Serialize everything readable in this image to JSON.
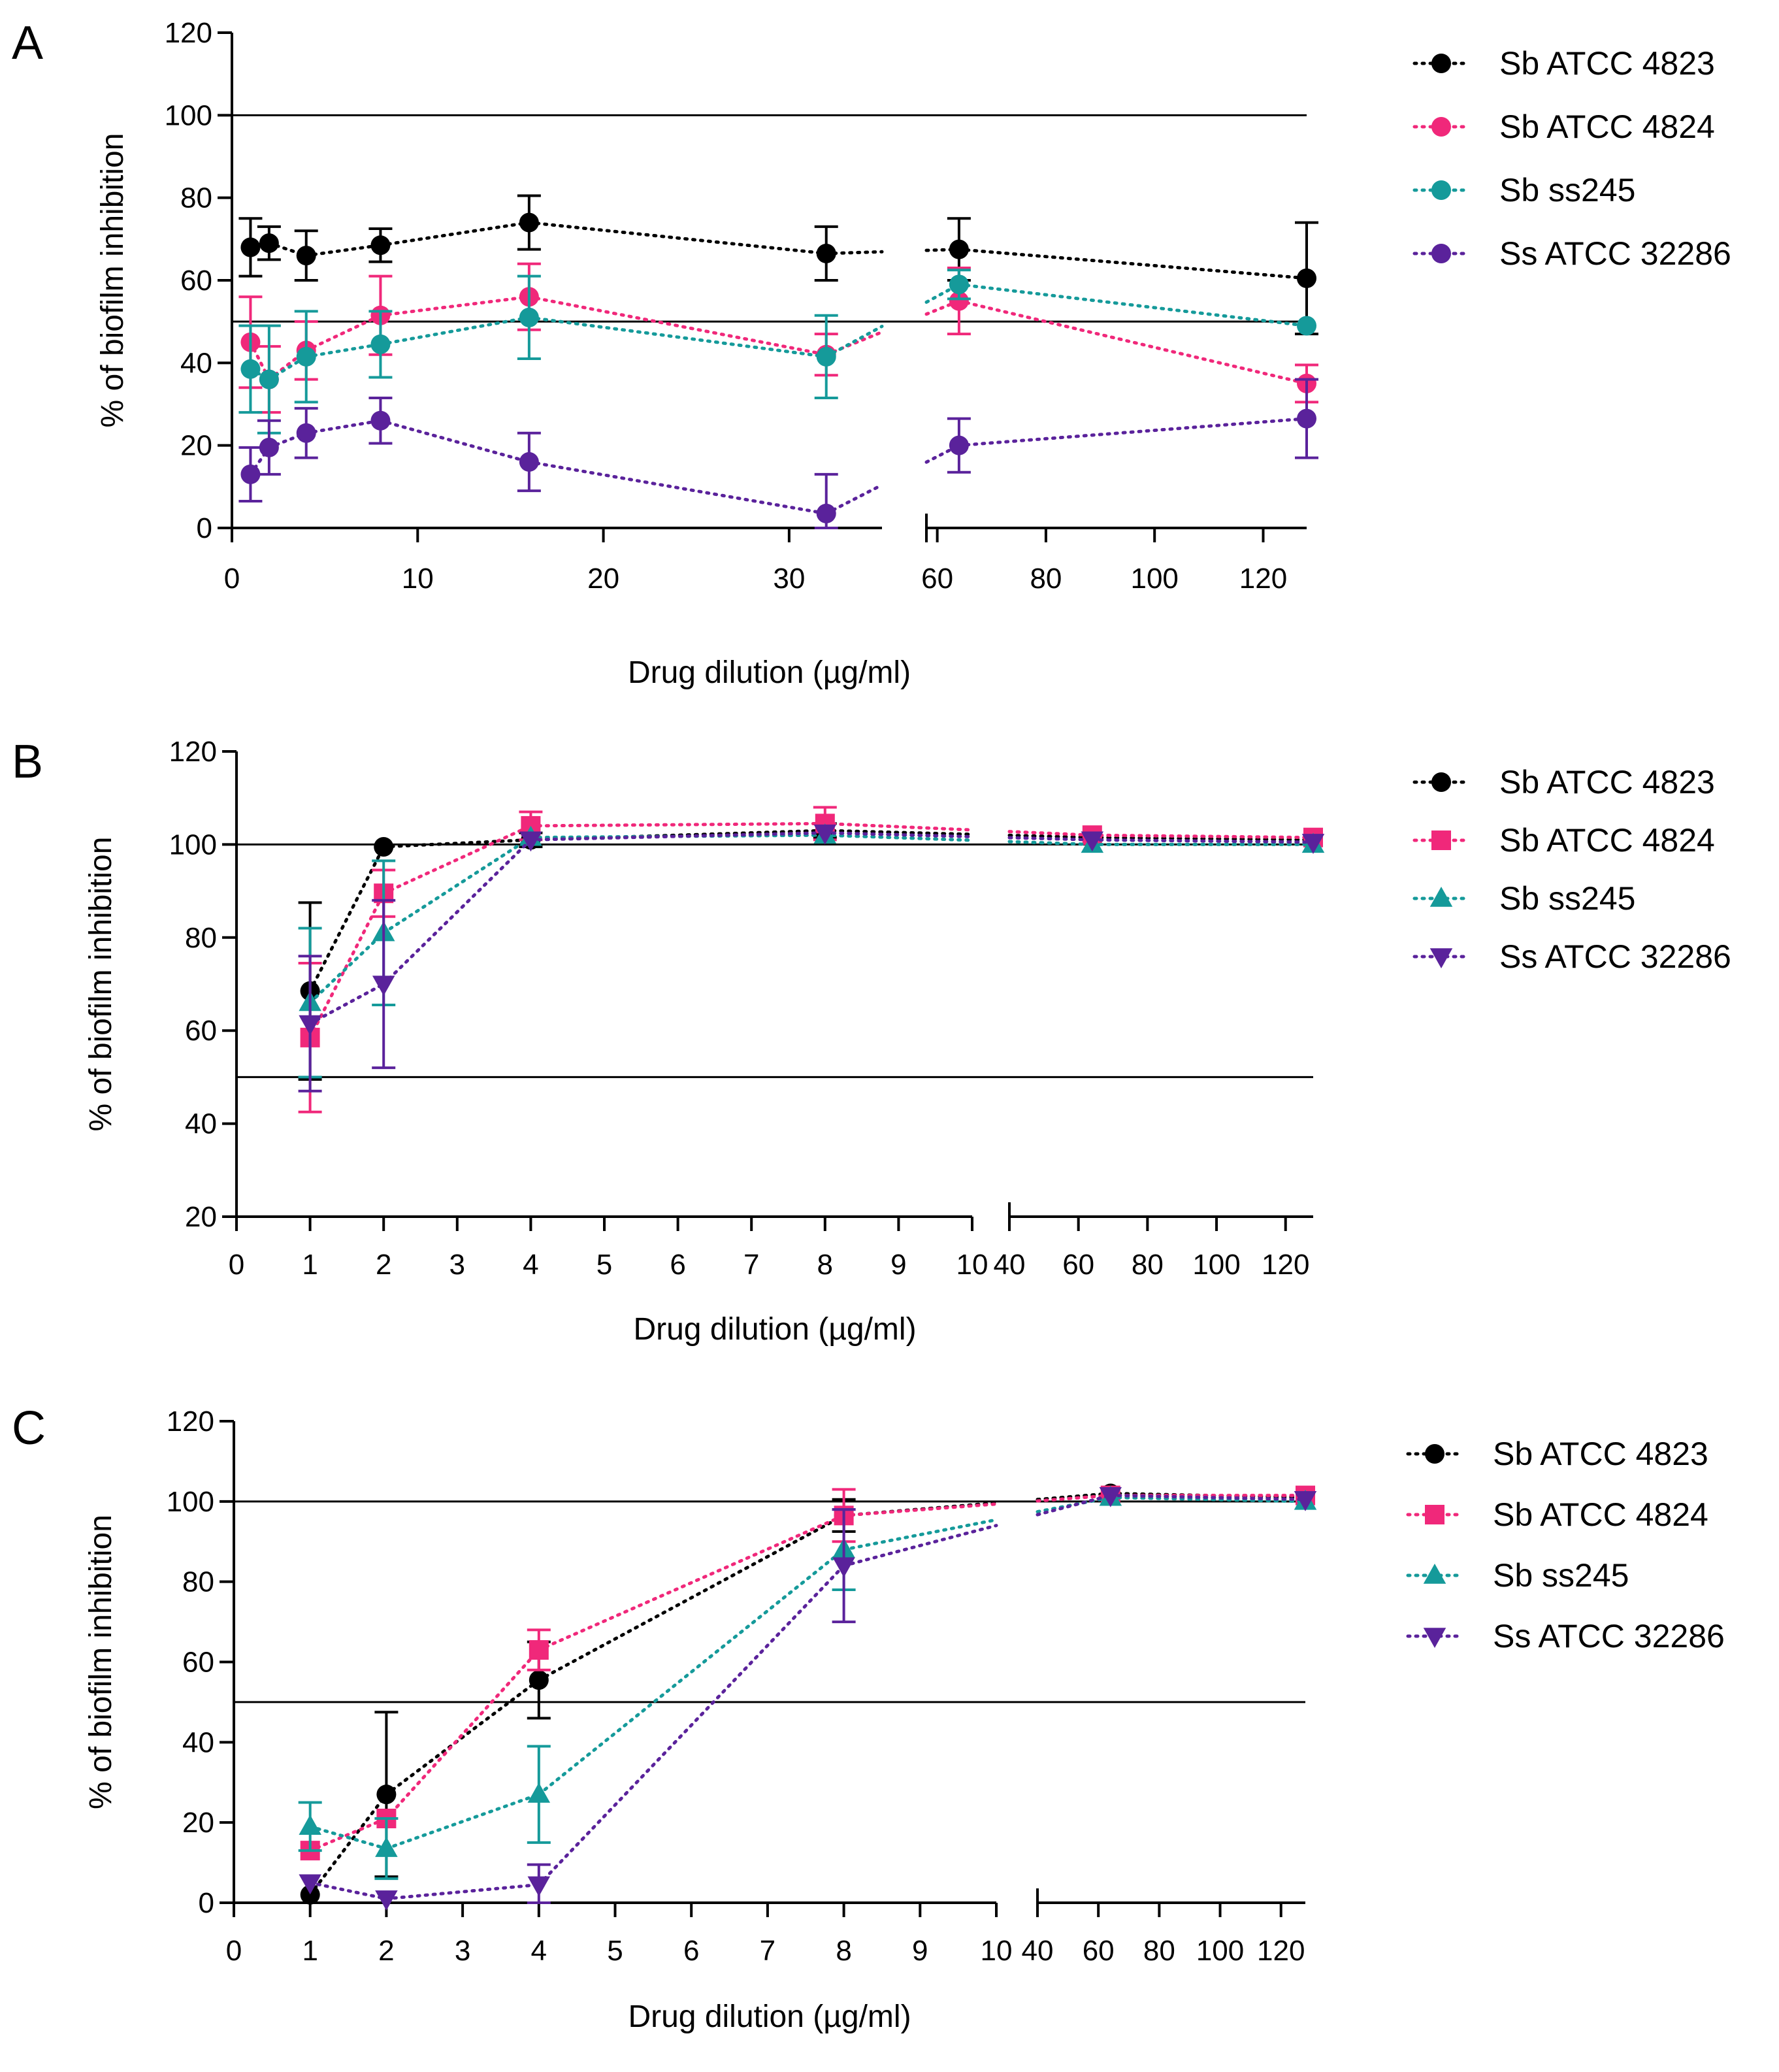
{
  "chart_data": [
    {
      "panel": "A",
      "type": "scatter",
      "xlabel": "Drug dilution (µg/ml)",
      "ylabel": "% of biofilm inhibition",
      "ylim": [
        0,
        120
      ],
      "yticks": [
        "0",
        "20",
        "40",
        "60",
        "80",
        "100",
        "120"
      ],
      "reference_lines": [
        50,
        100
      ],
      "x_segments": [
        {
          "range": [
            0,
            35
          ],
          "ticks": [
            0,
            10,
            20,
            30
          ],
          "tick_labels": [
            "0",
            "10",
            "20",
            "30"
          ]
        },
        {
          "range": [
            58,
            128
          ],
          "ticks": [
            60,
            80,
            100,
            120
          ],
          "tick_labels": [
            "60",
            "80",
            "100",
            "120"
          ]
        }
      ],
      "series": [
        {
          "name": "Sb ATCC 4823",
          "color": "#000000",
          "marker": "circle",
          "x": [
            1,
            2,
            4,
            8,
            16,
            32,
            64,
            128
          ],
          "values": [
            68,
            69,
            66,
            68.5,
            74,
            66.5,
            67.5,
            60.5
          ],
          "errors": [
            7,
            4,
            6,
            4,
            6.5,
            6.5,
            7.5,
            13.5
          ]
        },
        {
          "name": "Sb ATCC 4824",
          "color": "#f0287a",
          "marker": "circle",
          "x": [
            1,
            2,
            4,
            8,
            16,
            32,
            64,
            128
          ],
          "values": [
            45,
            36,
            43,
            51.5,
            56,
            42,
            55,
            35
          ],
          "errors": [
            11,
            8,
            7,
            9.5,
            8,
            5,
            8,
            4.5
          ]
        },
        {
          "name": "Sb ss245",
          "color": "#159a9a",
          "marker": "circle",
          "x": [
            1,
            2,
            4,
            8,
            16,
            32,
            64,
            128
          ],
          "values": [
            38.5,
            36,
            41.5,
            44.5,
            51,
            41.5,
            59,
            49
          ],
          "errors": [
            10.5,
            13,
            11,
            8,
            10,
            10,
            3.5,
            0
          ]
        },
        {
          "name": "Ss ATCC 32286",
          "color": "#5a229b",
          "marker": "circle",
          "x": [
            1,
            2,
            4,
            8,
            16,
            32,
            64,
            128
          ],
          "values": [
            13,
            19.5,
            23,
            26,
            16,
            3.5,
            20,
            26.5
          ],
          "errors": [
            6.5,
            6.5,
            6,
            5.5,
            7,
            9.5,
            6.5,
            9.5
          ]
        }
      ]
    },
    {
      "panel": "B",
      "type": "scatter",
      "xlabel": "Drug dilution (µg/ml)",
      "ylabel": "% of biofilm inhibition",
      "ylim": [
        20,
        120
      ],
      "yticks": [
        "20",
        "40",
        "60",
        "80",
        "100",
        "120"
      ],
      "reference_lines": [
        50,
        100
      ],
      "x_segments": [
        {
          "range": [
            0,
            10
          ],
          "ticks": [
            0,
            1,
            2,
            3,
            4,
            5,
            6,
            7,
            8,
            9,
            10
          ],
          "tick_labels": [
            "0",
            "1",
            "2",
            "3",
            "4",
            "5",
            "6",
            "7",
            "8",
            "9",
            "10"
          ]
        },
        {
          "range": [
            40,
            128
          ],
          "ticks": [
            40,
            60,
            80,
            100,
            120
          ],
          "tick_labels": [
            "40",
            "60",
            "80",
            "100",
            "120"
          ]
        }
      ],
      "series": [
        {
          "name": "Sb ATCC 4823",
          "color": "#000000",
          "marker": "circle",
          "x": [
            1,
            2,
            4,
            8,
            64,
            128
          ],
          "values": [
            68.5,
            99.5,
            101,
            103,
            101.5,
            101
          ],
          "errors": [
            19,
            0,
            1.5,
            1.5,
            0,
            0
          ]
        },
        {
          "name": "Sb ATCC 4824",
          "color": "#f0287a",
          "marker": "square",
          "x": [
            1,
            2,
            4,
            8,
            64,
            128
          ],
          "values": [
            58.5,
            89.5,
            104,
            104.5,
            102,
            101.5
          ],
          "errors": [
            16,
            5,
            3,
            3.5,
            0,
            0
          ]
        },
        {
          "name": "Sb ss245",
          "color": "#159a9a",
          "marker": "triangle-up",
          "x": [
            1,
            2,
            4,
            8,
            64,
            128
          ],
          "values": [
            66,
            81,
            101.5,
            102,
            100,
            100
          ],
          "errors": [
            16,
            15.5,
            0,
            0,
            0,
            0
          ]
        },
        {
          "name": "Ss ATCC 32286",
          "color": "#5a229b",
          "marker": "triangle-down",
          "x": [
            1,
            2,
            4,
            8,
            64,
            128
          ],
          "values": [
            61.5,
            70,
            101,
            102.5,
            101,
            100.5
          ],
          "errors": [
            14.5,
            18,
            0,
            0,
            0,
            0
          ]
        }
      ]
    },
    {
      "panel": "C",
      "type": "scatter",
      "xlabel": "Drug dilution (µg/ml)",
      "ylabel": "% of biofilm inhibition",
      "ylim": [
        0,
        120
      ],
      "yticks": [
        "0",
        "20",
        "40",
        "60",
        "80",
        "100",
        "120"
      ],
      "reference_lines": [
        50,
        100
      ],
      "x_segments": [
        {
          "range": [
            0,
            10
          ],
          "ticks": [
            0,
            1,
            2,
            3,
            4,
            5,
            6,
            7,
            8,
            9,
            10
          ],
          "tick_labels": [
            "0",
            "1",
            "2",
            "3",
            "4",
            "5",
            "6",
            "7",
            "8",
            "9",
            "10"
          ]
        },
        {
          "range": [
            40,
            128
          ],
          "ticks": [
            40,
            60,
            80,
            100,
            120
          ],
          "tick_labels": [
            "40",
            "60",
            "80",
            "100",
            "120"
          ]
        }
      ],
      "series": [
        {
          "name": "Sb ATCC 4823",
          "color": "#000000",
          "marker": "circle",
          "x": [
            1,
            2,
            4,
            8,
            64,
            128
          ],
          "values": [
            2,
            27,
            55.5,
            96.5,
            102,
            101
          ],
          "errors": [
            0,
            20.5,
            9.5,
            4,
            0,
            0
          ]
        },
        {
          "name": "Sb ATCC 4824",
          "color": "#f0287a",
          "marker": "square",
          "x": [
            1,
            2,
            4,
            8,
            64,
            128
          ],
          "values": [
            13,
            21,
            63,
            96.5,
            101.5,
            101.5
          ],
          "errors": [
            0,
            0,
            5,
            6.5,
            0,
            0
          ]
        },
        {
          "name": "Sb ss245",
          "color": "#159a9a",
          "marker": "triangle-up",
          "x": [
            1,
            2,
            4,
            8,
            64,
            128
          ],
          "values": [
            19,
            13.5,
            27,
            88,
            101,
            100
          ],
          "errors": [
            6,
            7.5,
            12,
            10,
            0,
            0
          ]
        },
        {
          "name": "Ss ATCC 32286",
          "color": "#5a229b",
          "marker": "triangle-down",
          "x": [
            1,
            2,
            4,
            8,
            64,
            128
          ],
          "values": [
            5,
            1,
            4.5,
            84,
            101.5,
            100.5
          ],
          "errors": [
            0,
            0,
            5,
            14,
            0,
            0
          ]
        }
      ]
    }
  ]
}
